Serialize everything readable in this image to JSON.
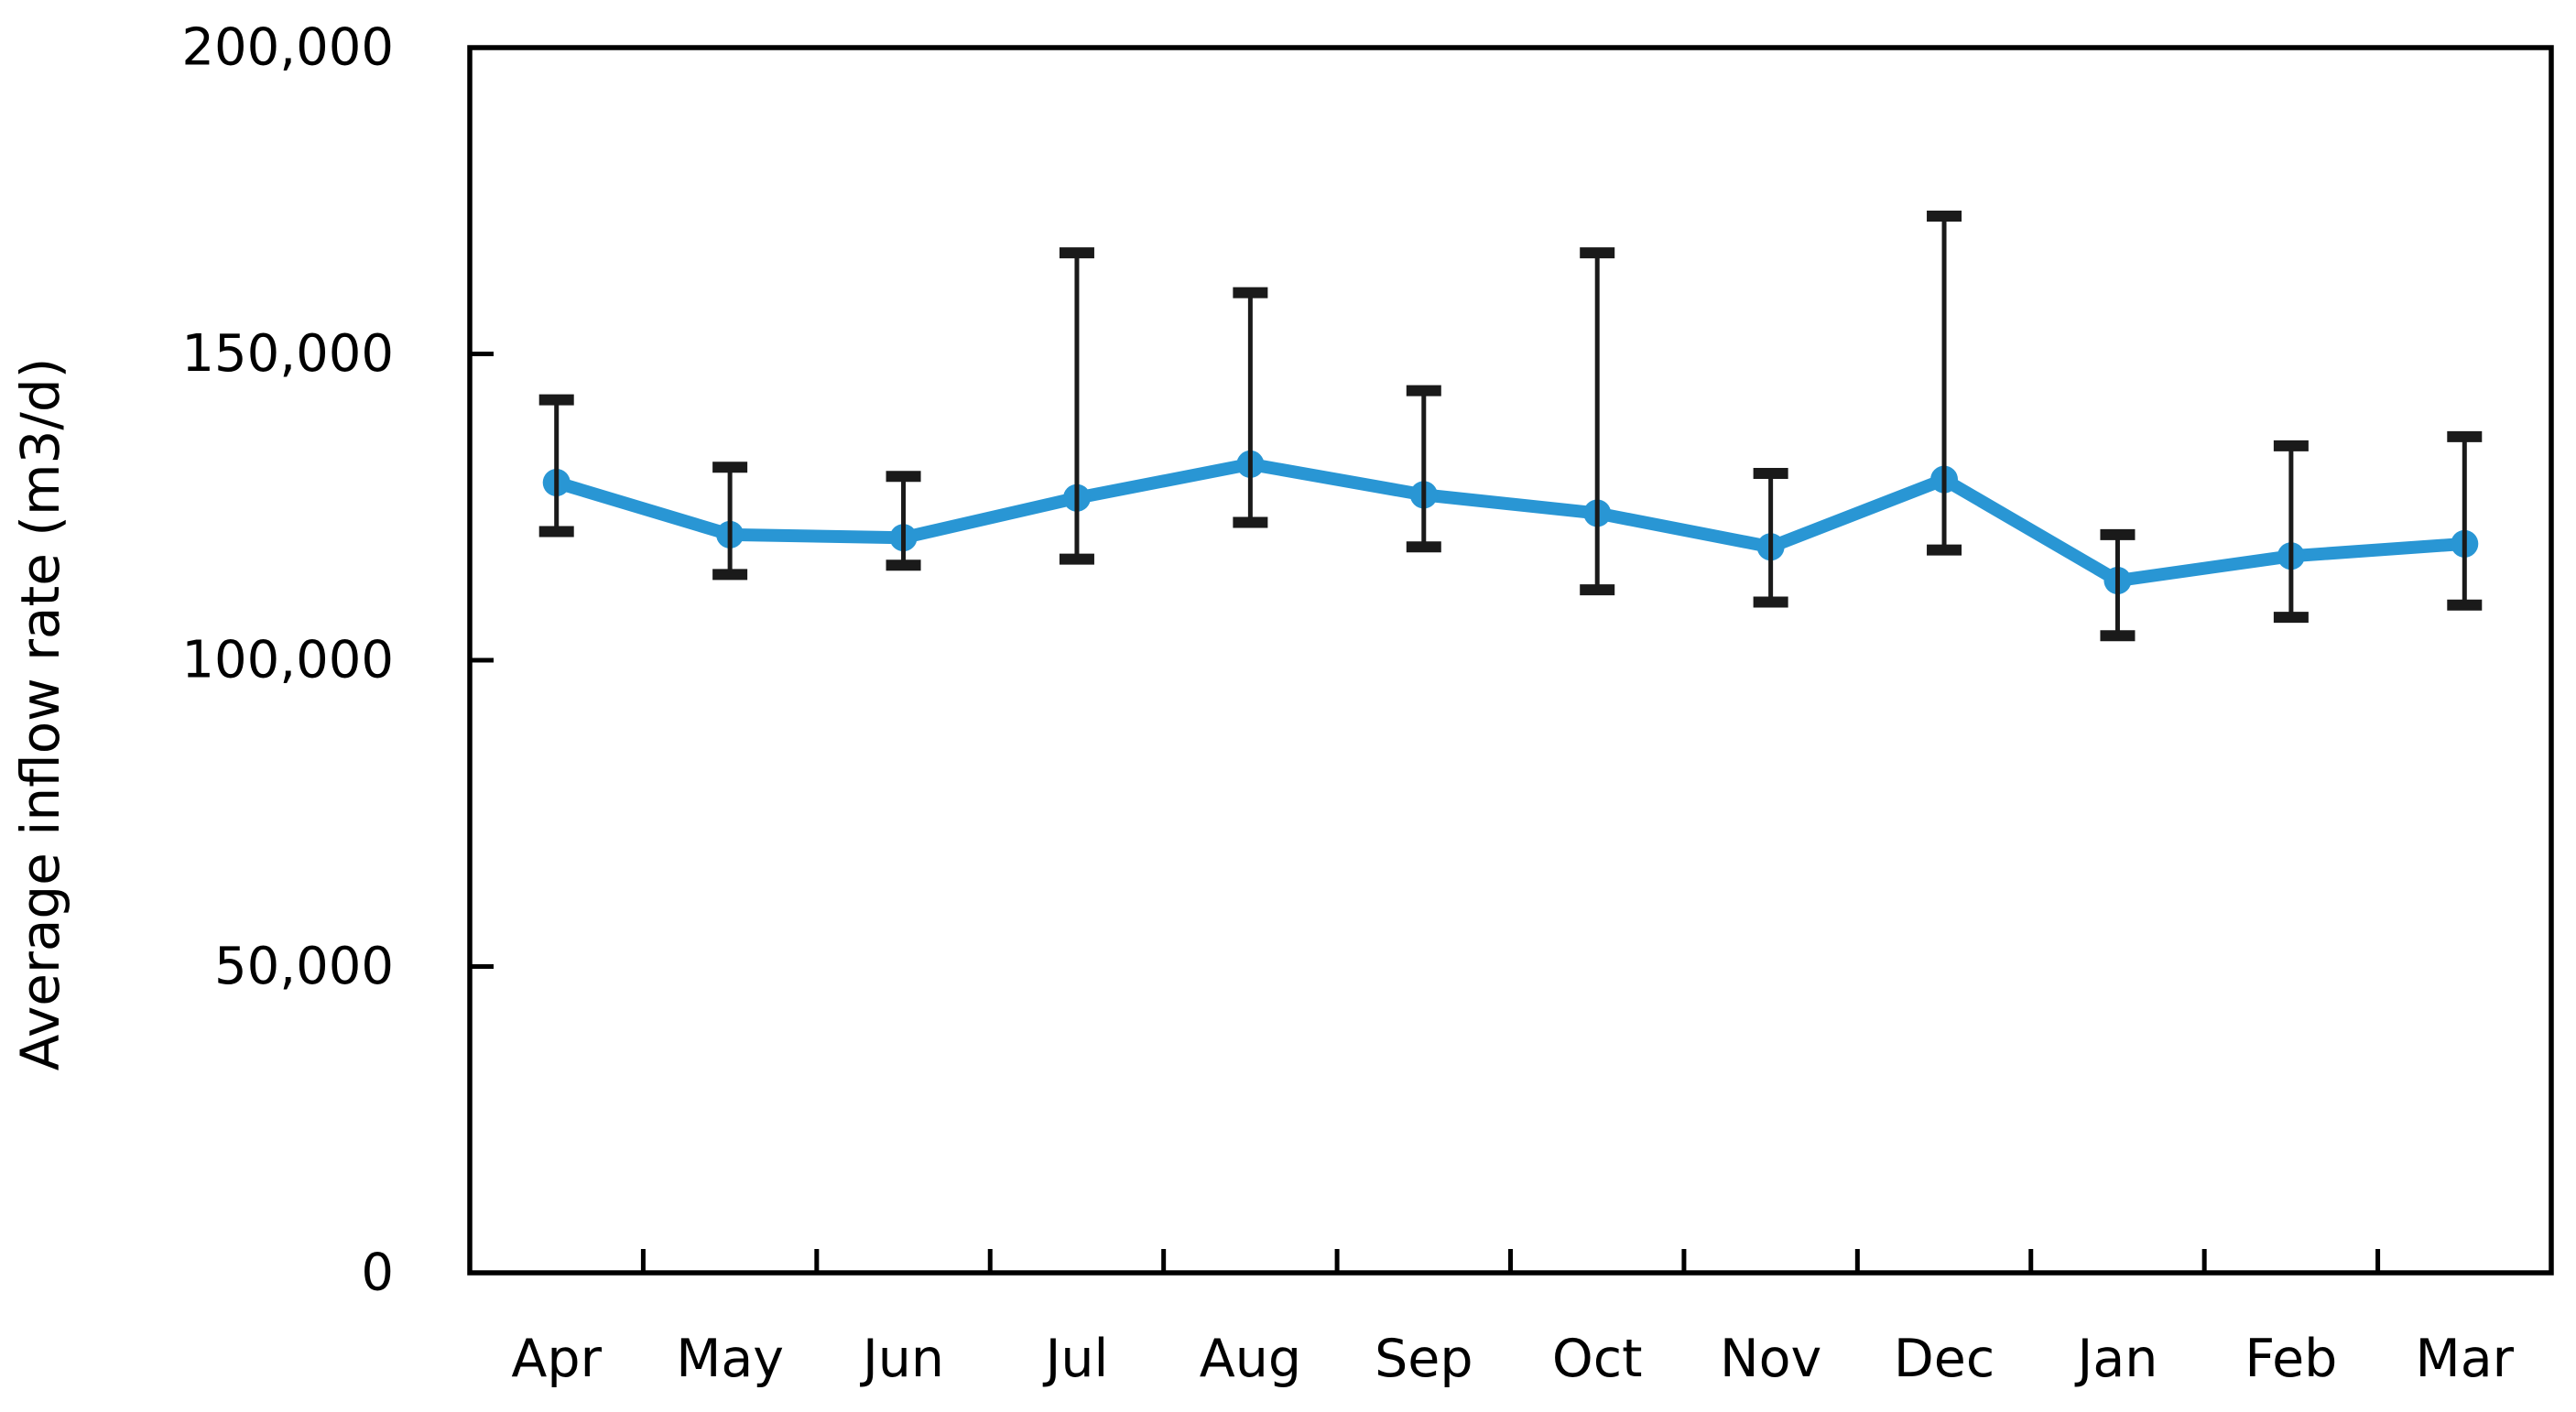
{
  "page": {
    "background": "#ffffff"
  },
  "chart_data": {
    "type": "line",
    "title": "",
    "xlabel": "",
    "ylabel": "Average inflow rate (m3/d)",
    "categories": [
      "Apr",
      "May",
      "Jun",
      "Jul",
      "Aug",
      "Sep",
      "Oct",
      "Nov",
      "Dec",
      "Jan",
      "Feb",
      "Mar"
    ],
    "series": [
      {
        "name": "Average inflow rate",
        "values": [
          129000,
          120500,
          120000,
          126500,
          132000,
          127000,
          124000,
          118500,
          129500,
          113000,
          117000,
          119000
        ],
        "error_upper": [
          142500,
          131500,
          130000,
          166500,
          160000,
          144000,
          166500,
          130500,
          172500,
          120500,
          135000,
          136500
        ],
        "error_lower": [
          121000,
          114000,
          115500,
          116500,
          122500,
          118500,
          111500,
          109500,
          118000,
          104000,
          107000,
          109000
        ]
      }
    ],
    "ylim": [
      0,
      200000
    ],
    "ytick_interval": 50000,
    "ytick_values": [
      0,
      50000,
      100000,
      150000,
      200000
    ],
    "ytick_labels": [
      "0",
      "50,000",
      "100,000",
      "150,000",
      "200,000"
    ],
    "grid": false,
    "legend": "none",
    "marker": "circle",
    "colors": {
      "line": "#2996D4",
      "marker": "#2996D4",
      "error_bar": "#1a1a1a",
      "axis": "#000000",
      "text": "#000000"
    }
  }
}
